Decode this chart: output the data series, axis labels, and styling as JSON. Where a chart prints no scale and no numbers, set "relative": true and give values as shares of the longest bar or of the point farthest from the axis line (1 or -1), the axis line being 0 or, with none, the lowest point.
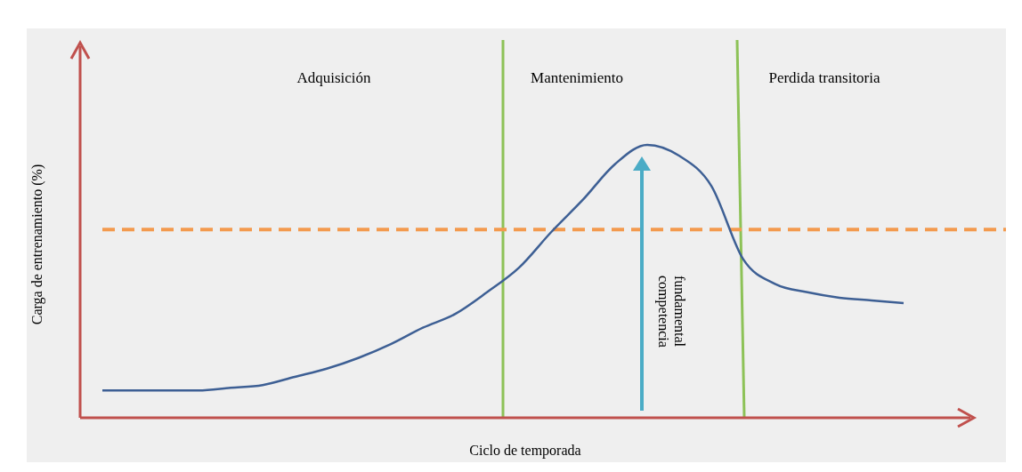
{
  "chart_data": {
    "type": "line",
    "relative": true,
    "xlabel": "Ciclo de temporada",
    "ylabel": "Carga de entrenamiento (%)",
    "categories": [
      null,
      null,
      null,
      null,
      null,
      null,
      null,
      null,
      null,
      null,
      null,
      null,
      null,
      null,
      null,
      null,
      null,
      null,
      null,
      null,
      null,
      null,
      null,
      null,
      null,
      null
    ],
    "series": [
      {
        "color": "#3d5f94",
        "values": [
          0.1,
          0.1,
          0.1,
          0.1,
          0.11,
          0.12,
          0.15,
          0.18,
          0.22,
          0.27,
          0.33,
          0.38,
          0.46,
          0.55,
          0.68,
          0.8,
          0.93,
          1.0,
          0.96,
          0.85,
          0.58,
          0.49,
          0.46,
          0.44,
          0.43,
          0.42
        ]
      }
    ],
    "ref_lines": [
      {
        "axis": "y",
        "value": 0.69,
        "color": "#f39a4e",
        "line_style": "dashed"
      }
    ],
    "annotations": [
      "Adquisición",
      "Mantenimiento",
      "Perdida transitoria",
      "competencia fundamental"
    ],
    "marker": "none",
    "line_style": "solid"
  }
}
